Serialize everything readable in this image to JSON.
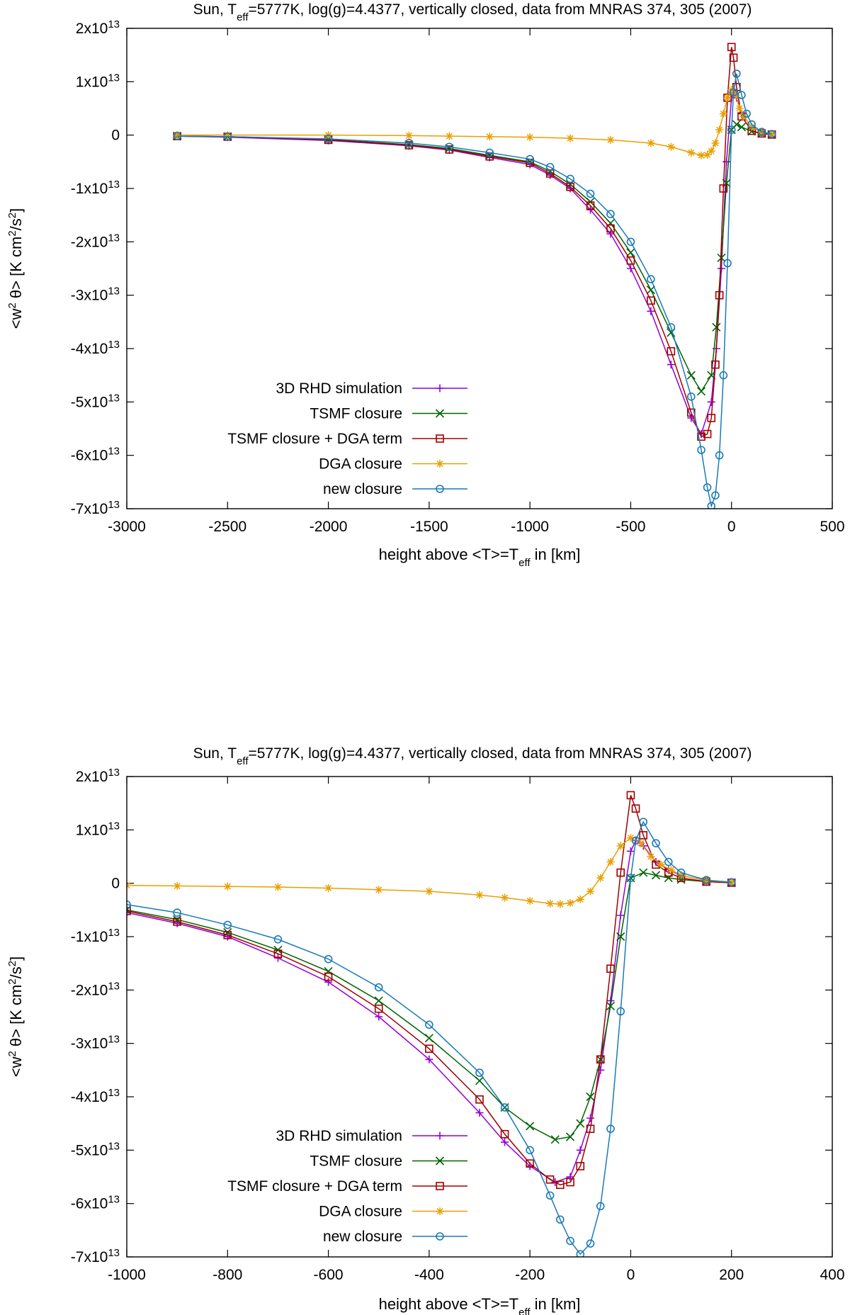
{
  "chart_data": [
    {
      "type": "line",
      "title": "Sun, T_eff=5777K, log(g)=4.4377, vertically closed, data from MNRAS 374, 305 (2007)",
      "title_parts": {
        "pre": "Sun, T",
        "sub": "eff",
        "post": "=5777K, log(g)=4.4377, vertically closed, data from MNRAS 374, 305 (2007)"
      },
      "xlabel": "height above <T>=T_eff in [km]",
      "xlabel_parts": {
        "pre": "height above <T>=T",
        "sub": "eff",
        "post": " in [km]"
      },
      "ylabel": "<w^2 θ> [K cm^2/s^2]",
      "xlim": [
        -3000,
        500
      ],
      "ylim": [
        -70000000000000.0,
        20000000000000.0
      ],
      "xticks": [
        -3000,
        -2500,
        -2000,
        -1500,
        -1000,
        -500,
        0,
        500
      ],
      "xtick_labels": [
        "-3000",
        "-2500",
        "-2000",
        "-1500",
        "-1000",
        "-500",
        "0",
        "500"
      ],
      "yticks": [
        -70000000000000.0,
        -60000000000000.0,
        -50000000000000.0,
        -40000000000000.0,
        -30000000000000.0,
        -20000000000000.0,
        -10000000000000.0,
        0,
        10000000000000.0,
        20000000000000.0
      ],
      "ytick_labels": [
        {
          "mant": "-7x10",
          "exp": "13"
        },
        {
          "mant": "-6x10",
          "exp": "13"
        },
        {
          "mant": "-5x10",
          "exp": "13"
        },
        {
          "mant": "-4x10",
          "exp": "13"
        },
        {
          "mant": "-3x10",
          "exp": "13"
        },
        {
          "mant": "-2x10",
          "exp": "13"
        },
        {
          "mant": "-1x10",
          "exp": "13"
        },
        {
          "mant": "0",
          "exp": ""
        },
        {
          "mant": "1x10",
          "exp": "13"
        },
        {
          "mant": "2x10",
          "exp": "13"
        }
      ],
      "legend_position": "lower-left",
      "series": [
        {
          "name": "3D RHD simulation",
          "color": "#9400d3",
          "marker": "plus",
          "x": [
            -2750,
            -2500,
            -2000,
            -1600,
            -1400,
            -1200,
            -1000,
            -900,
            -800,
            -700,
            -600,
            -500,
            -400,
            -300,
            -200,
            -150,
            -100,
            -75,
            -50,
            -25,
            0,
            10,
            25,
            50,
            100,
            150,
            200
          ],
          "y": [
            -200000000000.0,
            -400000000000.0,
            -1000000000000.0,
            -2000000000000.0,
            -2800000000000.0,
            -4200000000000.0,
            -5500000000000.0,
            -7500000000000.0,
            -10000000000000.0,
            -14000000000000.0,
            -18500000000000.0,
            -25000000000000.0,
            -33000000000000.0,
            -43000000000000.0,
            -53000000000000.0,
            -56000000000000.0,
            -50000000000000.0,
            -40000000000000.0,
            -25000000000000.0,
            -5000000000000.0,
            7000000000000.0,
            8000000000000.0,
            7000000000000.0,
            4000000000000.0,
            1500000000000.0,
            500000000000.0,
            200000000000.0
          ]
        },
        {
          "name": "TSMF closure",
          "color": "#006400",
          "marker": "cross",
          "x": [
            -2750,
            -2500,
            -2000,
            -1600,
            -1400,
            -1200,
            -1000,
            -900,
            -800,
            -700,
            -600,
            -500,
            -400,
            -300,
            -200,
            -150,
            -100,
            -75,
            -50,
            -25,
            0,
            25,
            50,
            100,
            150,
            200
          ],
          "y": [
            -200000000000.0,
            -300000000000.0,
            -800000000000.0,
            -1800000000000.0,
            -2500000000000.0,
            -3800000000000.0,
            -5000000000000.0,
            -6800000000000.0,
            -9200000000000.0,
            -12500000000000.0,
            -16500000000000.0,
            -22000000000000.0,
            -29000000000000.0,
            -37000000000000.0,
            -45000000000000.0,
            -48000000000000.0,
            -45000000000000.0,
            -36000000000000.0,
            -23000000000000.0,
            -9000000000000.0,
            1000000000000.0,
            2000000000000.0,
            1500000000000.0,
            700000000000.0,
            300000000000.0,
            100000000000.0
          ]
        },
        {
          "name": "TSMF closure + DGA term",
          "color": "#a00000",
          "marker": "square",
          "x": [
            -2750,
            -2500,
            -2000,
            -1600,
            -1400,
            -1200,
            -1000,
            -900,
            -800,
            -700,
            -600,
            -500,
            -400,
            -300,
            -200,
            -150,
            -120,
            -100,
            -80,
            -60,
            -40,
            -20,
            0,
            10,
            25,
            50,
            100,
            150,
            200
          ],
          "y": [
            -200000000000.0,
            -300000000000.0,
            -900000000000.0,
            -1900000000000.0,
            -2700000000000.0,
            -4000000000000.0,
            -5200000000000.0,
            -7200000000000.0,
            -9700000000000.0,
            -13200000000000.0,
            -17500000000000.0,
            -23500000000000.0,
            -31000000000000.0,
            -40500000000000.0,
            -52000000000000.0,
            -56500000000000.0,
            -56000000000000.0,
            -53000000000000.0,
            -43000000000000.0,
            -30000000000000.0,
            -10000000000000.0,
            7000000000000.0,
            16500000000000.0,
            14500000000000.0,
            9000000000000.0,
            3500000000000.0,
            800000000000.0,
            300000000000.0,
            100000000000.0
          ]
        },
        {
          "name": "DGA closure",
          "color": "#e8a000",
          "marker": "star",
          "x": [
            -2750,
            -2500,
            -2000,
            -1600,
            -1400,
            -1200,
            -1000,
            -800,
            -600,
            -400,
            -300,
            -200,
            -150,
            -120,
            -100,
            -80,
            -60,
            -40,
            -20,
            0,
            20,
            40,
            60,
            100,
            150,
            200
          ],
          "y": [
            0,
            0,
            0,
            -100000000000.0,
            -200000000000.0,
            -300000000000.0,
            -400000000000.0,
            -600000000000.0,
            -900000000000.0,
            -1500000000000.0,
            -2200000000000.0,
            -3300000000000.0,
            -3800000000000.0,
            -3700000000000.0,
            -3000000000000.0,
            -1500000000000.0,
            1000000000000.0,
            4000000000000.0,
            7000000000000.0,
            8500000000000.0,
            7500000000000.0,
            5000000000000.0,
            3500000000000.0,
            1500000000000.0,
            500000000000.0,
            200000000000.0
          ]
        },
        {
          "name": "new closure",
          "color": "#1a7ab8",
          "marker": "circle",
          "x": [
            -2750,
            -2500,
            -2000,
            -1600,
            -1400,
            -1200,
            -1000,
            -900,
            -800,
            -700,
            -600,
            -500,
            -400,
            -300,
            -200,
            -150,
            -120,
            -100,
            -80,
            -60,
            -40,
            -20,
            0,
            10,
            25,
            50,
            75,
            100,
            150,
            200
          ],
          "y": [
            -200000000000.0,
            -300000000000.0,
            -700000000000.0,
            -1500000000000.0,
            -2200000000000.0,
            -3300000000000.0,
            -4500000000000.0,
            -6000000000000.0,
            -8200000000000.0,
            -11000000000000.0,
            -14800000000000.0,
            -20000000000000.0,
            -27000000000000.0,
            -36000000000000.0,
            -49000000000000.0,
            -59000000000000.0,
            -66000000000000.0,
            -69500000000000.0,
            -67500000000000.0,
            -60000000000000.0,
            -45000000000000.0,
            -24000000000000.0,
            1000000000000.0,
            8000000000000.0,
            11500000000000.0,
            7500000000000.0,
            4000000000000.0,
            2000000000000.0,
            600000000000.0,
            200000000000.0
          ]
        }
      ]
    },
    {
      "type": "line",
      "title": "Sun, T_eff=5777K, log(g)=4.4377, vertically closed, data from MNRAS 374, 305 (2007)",
      "title_parts": {
        "pre": "Sun, T",
        "sub": "eff",
        "post": "=5777K, log(g)=4.4377, vertically closed, data from MNRAS 374, 305 (2007)"
      },
      "xlabel": "height above <T>=T_eff in [km]",
      "xlabel_parts": {
        "pre": "height above <T>=T",
        "sub": "eff",
        "post": " in [km]"
      },
      "ylabel": "<w^2 θ> [K cm^2/s^2]",
      "xlim": [
        -1000,
        400
      ],
      "ylim": [
        -70000000000000.0,
        20000000000000.0
      ],
      "xticks": [
        -1000,
        -800,
        -600,
        -400,
        -200,
        0,
        200,
        400
      ],
      "xtick_labels": [
        "-1000",
        "-800",
        "-600",
        "-400",
        "-200",
        "0",
        "200",
        "400"
      ],
      "yticks": [
        -70000000000000.0,
        -60000000000000.0,
        -50000000000000.0,
        -40000000000000.0,
        -30000000000000.0,
        -20000000000000.0,
        -10000000000000.0,
        0,
        10000000000000.0,
        20000000000000.0
      ],
      "ytick_labels": [
        {
          "mant": "-7x10",
          "exp": "13"
        },
        {
          "mant": "-6x10",
          "exp": "13"
        },
        {
          "mant": "-5x10",
          "exp": "13"
        },
        {
          "mant": "-4x10",
          "exp": "13"
        },
        {
          "mant": "-3x10",
          "exp": "13"
        },
        {
          "mant": "-2x10",
          "exp": "13"
        },
        {
          "mant": "-1x10",
          "exp": "13"
        },
        {
          "mant": "0",
          "exp": ""
        },
        {
          "mant": "1x10",
          "exp": "13"
        },
        {
          "mant": "2x10",
          "exp": "13"
        }
      ],
      "legend_position": "lower-left",
      "series": [
        {
          "name": "3D RHD simulation",
          "color": "#9400d3",
          "marker": "plus",
          "x": [
            -1000,
            -900,
            -800,
            -700,
            -600,
            -500,
            -400,
            -300,
            -250,
            -200,
            -150,
            -120,
            -100,
            -80,
            -60,
            -40,
            -20,
            0,
            10,
            25,
            50,
            75,
            100,
            150,
            200
          ],
          "y": [
            -5500000000000.0,
            -7500000000000.0,
            -10000000000000.0,
            -14000000000000.0,
            -18500000000000.0,
            -25000000000000.0,
            -33000000000000.0,
            -43000000000000.0,
            -48500000000000.0,
            -53000000000000.0,
            -56000000000000.0,
            -55000000000000.0,
            -50000000000000.0,
            -44000000000000.0,
            -35000000000000.0,
            -22000000000000.0,
            -6000000000000.0,
            6000000000000.0,
            8000000000000.0,
            7000000000000.0,
            4000000000000.0,
            2500000000000.0,
            1500000000000.0,
            500000000000.0,
            200000000000.0
          ]
        },
        {
          "name": "TSMF closure",
          "color": "#006400",
          "marker": "cross",
          "x": [
            -1000,
            -900,
            -800,
            -700,
            -600,
            -500,
            -400,
            -300,
            -250,
            -200,
            -150,
            -120,
            -100,
            -80,
            -60,
            -40,
            -20,
            0,
            25,
            50,
            75,
            100,
            150,
            200
          ],
          "y": [
            -5000000000000.0,
            -6800000000000.0,
            -9200000000000.0,
            -12500000000000.0,
            -16500000000000.0,
            -22000000000000.0,
            -29000000000000.0,
            -37000000000000.0,
            -42000000000000.0,
            -45500000000000.0,
            -48000000000000.0,
            -47500000000000.0,
            -45000000000000.0,
            -40000000000000.0,
            -33000000000000.0,
            -23000000000000.0,
            -10000000000000.0,
            1000000000000.0,
            2000000000000.0,
            1500000000000.0,
            1000000000000.0,
            700000000000.0,
            300000000000.0,
            100000000000.0
          ]
        },
        {
          "name": "TSMF closure + DGA term",
          "color": "#a00000",
          "marker": "square",
          "x": [
            -1000,
            -900,
            -800,
            -700,
            -600,
            -500,
            -400,
            -300,
            -250,
            -200,
            -160,
            -140,
            -120,
            -100,
            -80,
            -60,
            -40,
            -20,
            0,
            10,
            25,
            50,
            75,
            100,
            150,
            200
          ],
          "y": [
            -5200000000000.0,
            -7200000000000.0,
            -9700000000000.0,
            -13200000000000.0,
            -17500000000000.0,
            -23500000000000.0,
            -31000000000000.0,
            -40500000000000.0,
            -47000000000000.0,
            -52500000000000.0,
            -55500000000000.0,
            -56500000000000.0,
            -56000000000000.0,
            -53000000000000.0,
            -46000000000000.0,
            -33000000000000.0,
            -16000000000000.0,
            2000000000000.0,
            16500000000000.0,
            14000000000000.0,
            9000000000000.0,
            3500000000000.0,
            2000000000000.0,
            1000000000000.0,
            300000000000.0,
            100000000000.0
          ]
        },
        {
          "name": "DGA closure",
          "color": "#e8a000",
          "marker": "star",
          "x": [
            -1000,
            -900,
            -800,
            -700,
            -600,
            -500,
            -400,
            -300,
            -250,
            -200,
            -160,
            -140,
            -120,
            -100,
            -80,
            -60,
            -40,
            -20,
            0,
            20,
            40,
            60,
            80,
            100,
            150,
            200
          ],
          "y": [
            -400000000000.0,
            -500000000000.0,
            -600000000000.0,
            -700000000000.0,
            -900000000000.0,
            -1200000000000.0,
            -1500000000000.0,
            -2200000000000.0,
            -2700000000000.0,
            -3300000000000.0,
            -3800000000000.0,
            -3900000000000.0,
            -3700000000000.0,
            -3000000000000.0,
            -1500000000000.0,
            1000000000000.0,
            4000000000000.0,
            7000000000000.0,
            8500000000000.0,
            7500000000000.0,
            5000000000000.0,
            3500000000000.0,
            2500000000000.0,
            1500000000000.0,
            500000000000.0,
            200000000000.0
          ]
        },
        {
          "name": "new closure",
          "color": "#1a7ab8",
          "marker": "circle",
          "x": [
            -1000,
            -900,
            -800,
            -700,
            -600,
            -500,
            -400,
            -300,
            -250,
            -200,
            -160,
            -140,
            -120,
            -100,
            -80,
            -60,
            -40,
            -20,
            0,
            10,
            25,
            50,
            75,
            100,
            150,
            200
          ],
          "y": [
            -4000000000000.0,
            -5500000000000.0,
            -7800000000000.0,
            -10500000000000.0,
            -14200000000000.0,
            -19500000000000.0,
            -26500000000000.0,
            -35500000000000.0,
            -42000000000000.0,
            -50000000000000.0,
            -58500000000000.0,
            -63000000000000.0,
            -67000000000000.0,
            -69500000000000.0,
            -67500000000000.0,
            -60500000000000.0,
            -46000000000000.0,
            -24000000000000.0,
            1000000000000.0,
            8000000000000.0,
            11500000000000.0,
            7500000000000.0,
            4000000000000.0,
            2000000000000.0,
            600000000000.0,
            200000000000.0
          ]
        }
      ]
    }
  ]
}
